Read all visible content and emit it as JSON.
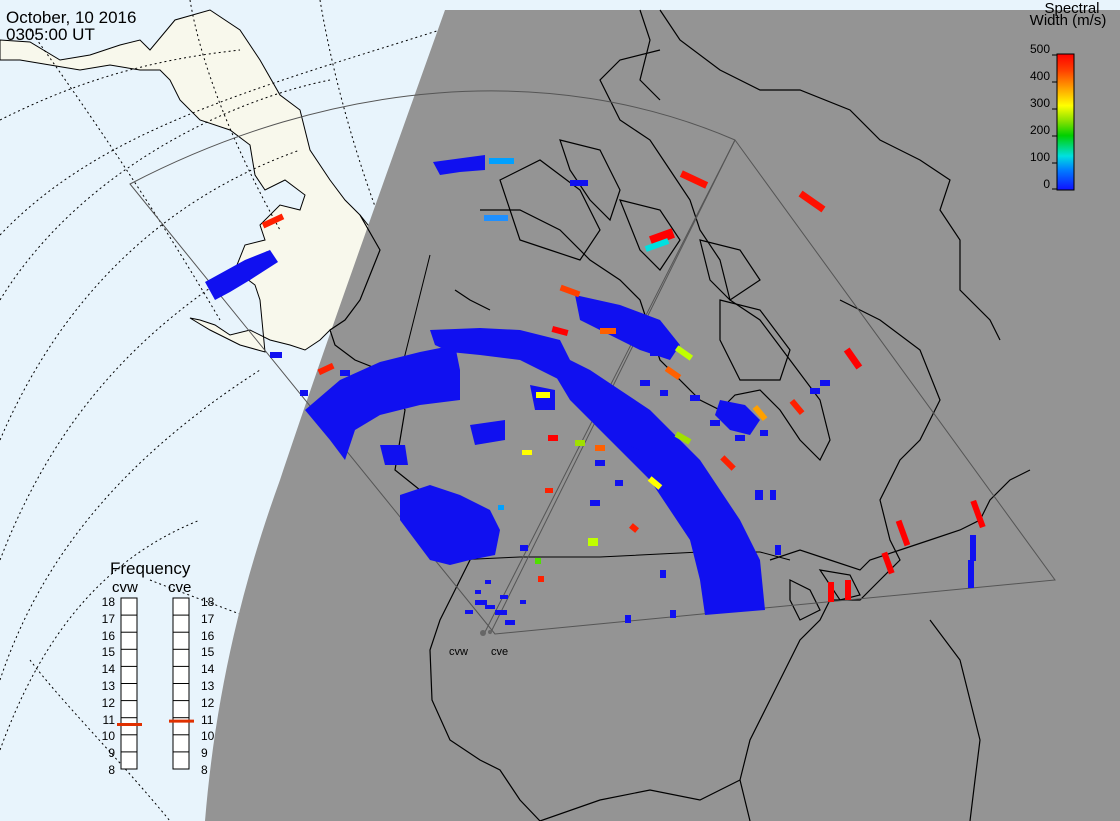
{
  "header": {
    "date": "October, 10 2016",
    "time": "0305:00 UT"
  },
  "colorbar": {
    "title_line1": "Spectral",
    "title_line2": "Width (m/s)",
    "ticks": [
      "500",
      "400",
      "300",
      "200",
      "100",
      "0"
    ],
    "colors": [
      "#1010ff",
      "#00a0ff",
      "#00e0e0",
      "#00d000",
      "#a0e000",
      "#ffff00",
      "#ffa000",
      "#ff4000",
      "#ff0000"
    ]
  },
  "frequency": {
    "title": "Frequency",
    "radars": [
      {
        "name": "cvw",
        "value": 10.6
      },
      {
        "name": "cve",
        "value": 10.8
      }
    ],
    "ticks": [
      "18",
      "17",
      "16",
      "15",
      "14",
      "13",
      "12",
      "11",
      "10",
      "9",
      "8"
    ],
    "min": 8,
    "max": 18,
    "marker_color": "#e03000"
  },
  "stations": [
    {
      "name": "cvw"
    },
    {
      "name": "cve"
    }
  ],
  "map_colors": {
    "night_shade": "#949494",
    "ocean_day": "#e8f4fc",
    "land_day": "#f8f8ec",
    "backscatter_main": "#1010f0"
  }
}
